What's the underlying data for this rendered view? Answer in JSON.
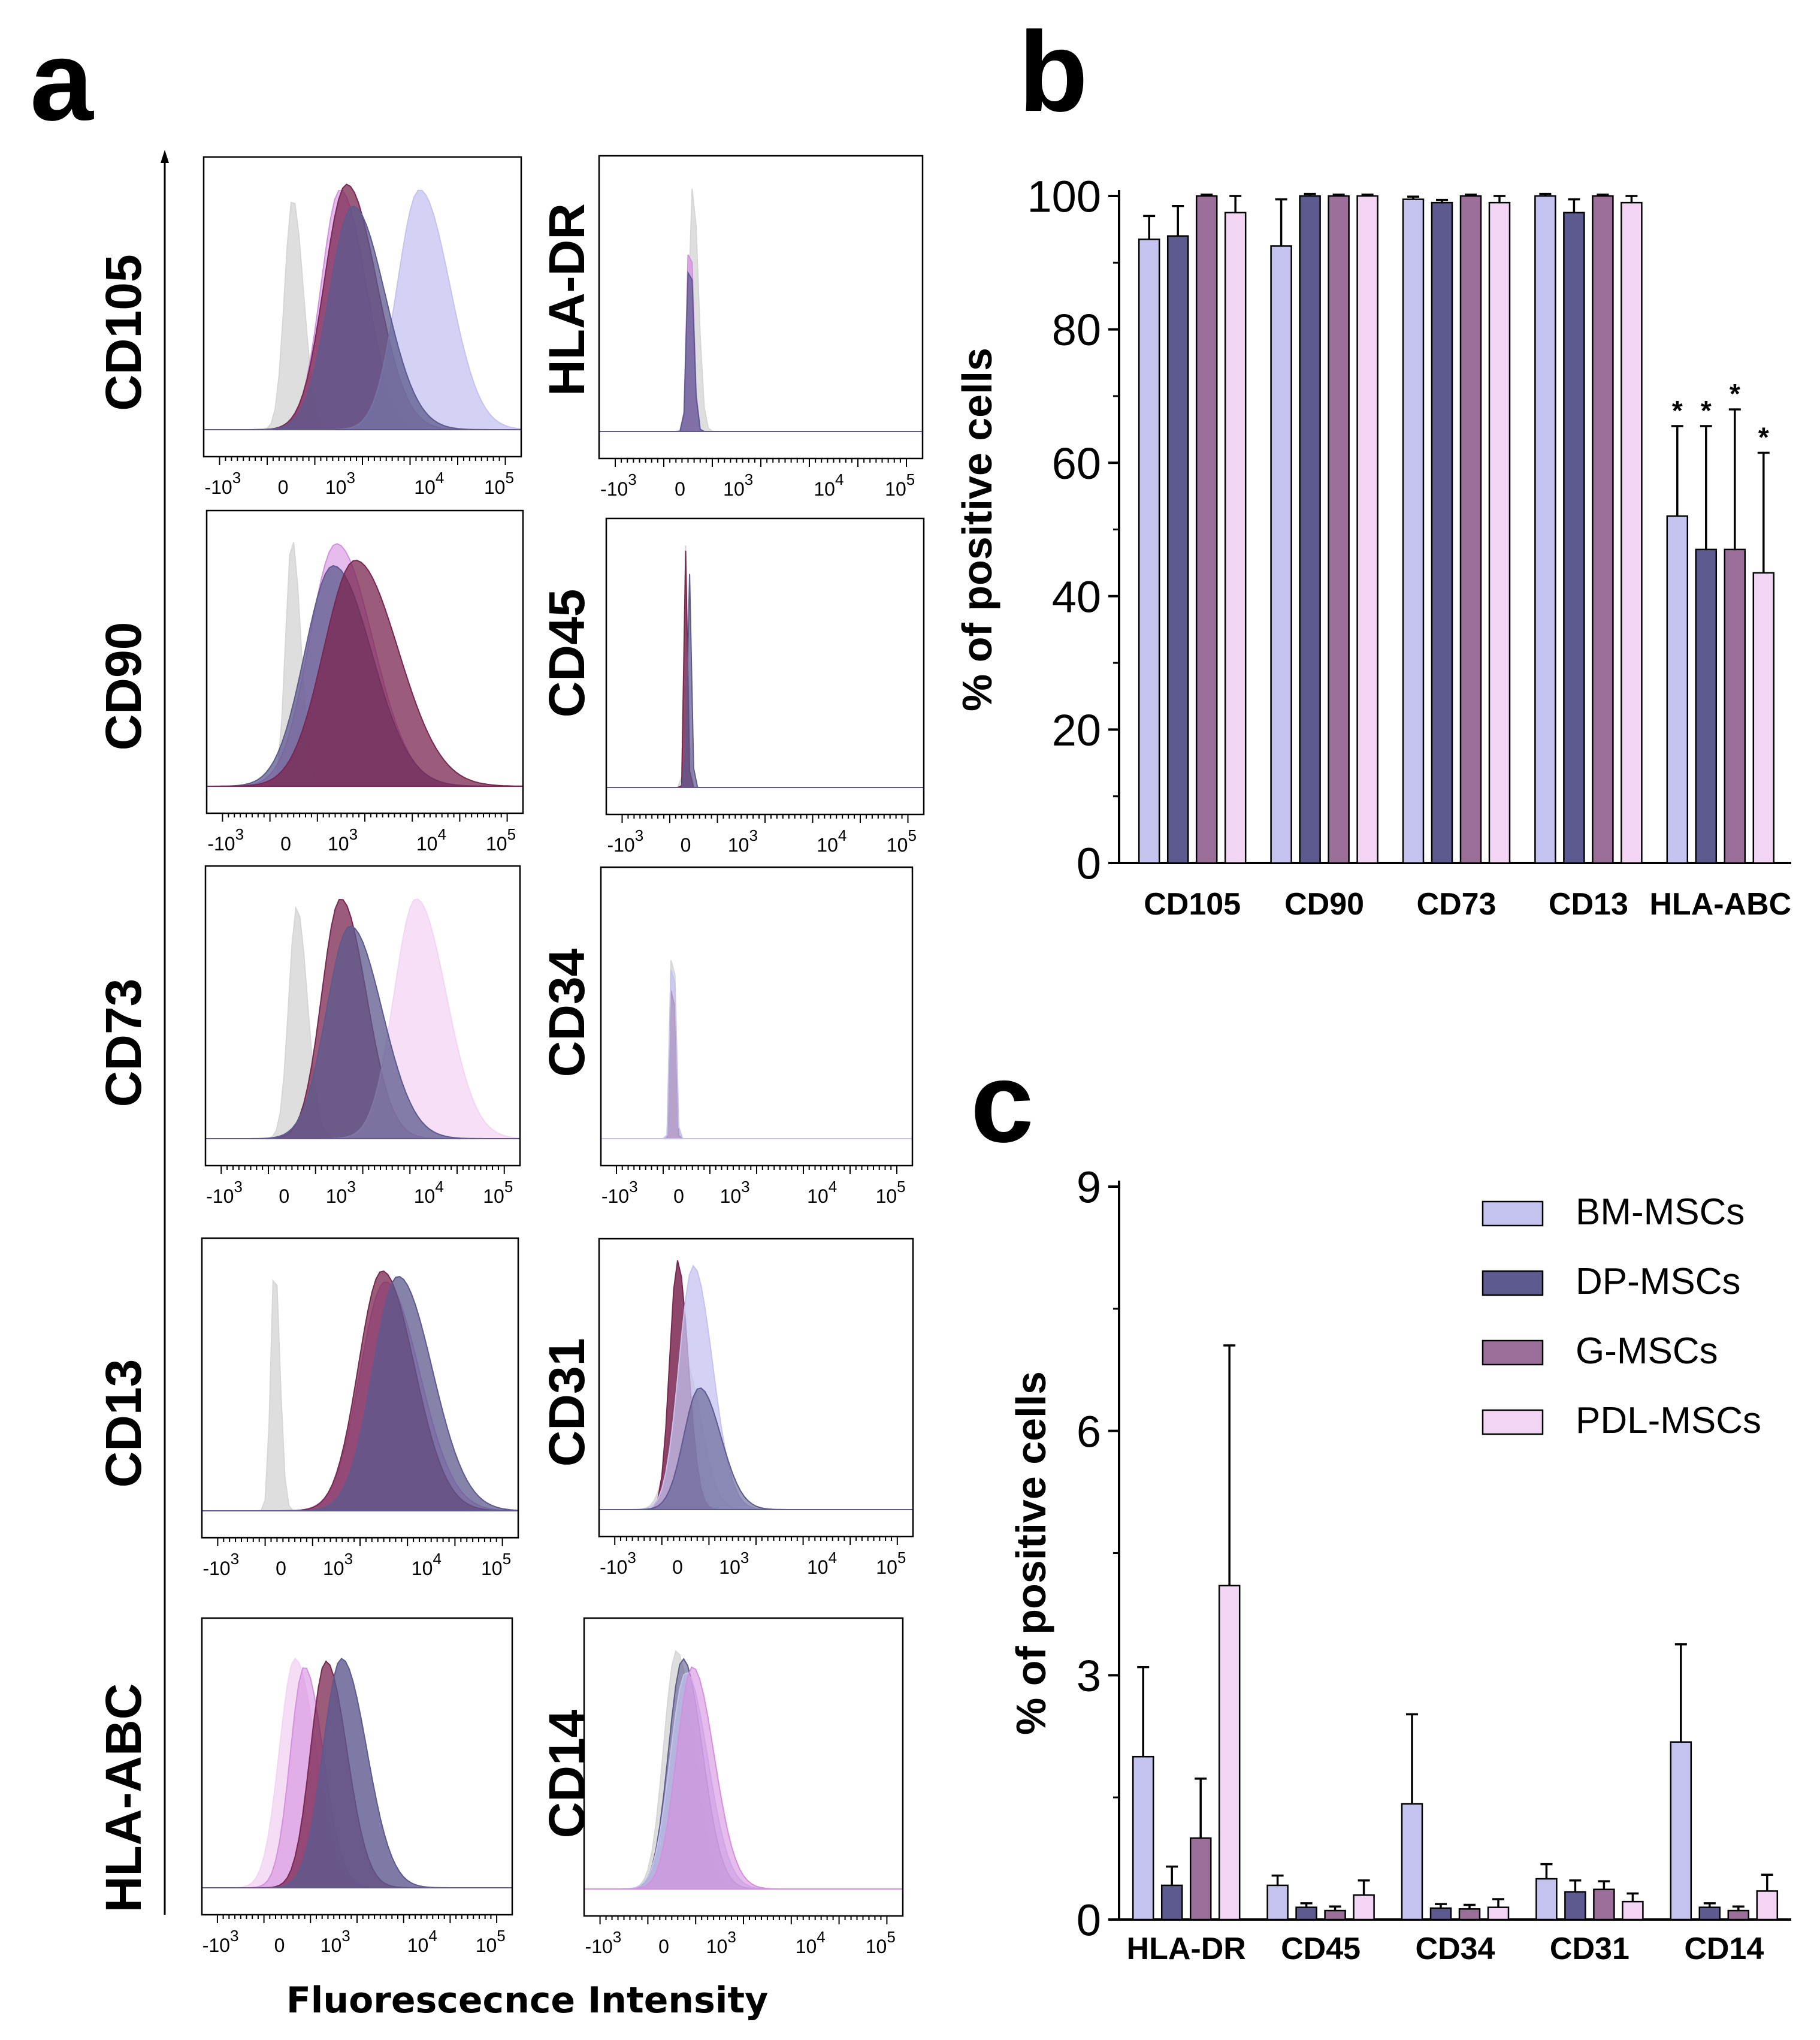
{
  "panel_a": {
    "letter": "a",
    "x_axis_label": "Fluorescecnce Intensity",
    "x_tick_labels": [
      "-10",
      "0",
      "10",
      "10",
      "10"
    ],
    "x_tick_superscripts": [
      "3",
      "",
      "3",
      "4",
      "5"
    ],
    "left_column_markers": [
      "CD105",
      "CD90",
      "CD73",
      "CD13",
      "HLA-ABC"
    ],
    "right_column_markers": [
      "HLA-DR",
      "CD45",
      "CD34",
      "CD31",
      "CD14"
    ]
  },
  "colors": {
    "BM-MSCs": "#c4c3f0",
    "DP-MSCs": "#5c5a8e",
    "G-MSCs": "#9c6f9b",
    "PDL-MSCs": "#f4d4f4",
    "isotype": "#d6d6d6",
    "magenta": "#d58fe0",
    "wine": "#7a2650"
  },
  "chart_data": [
    {
      "panel": "b",
      "type": "bar",
      "title": "",
      "xlabel": "",
      "ylabel": "% of positive cells",
      "ylim": [
        0,
        100
      ],
      "yticks": [
        "0",
        "20",
        "40",
        "60",
        "80",
        "100"
      ],
      "grid": false,
      "categories": [
        "CD105",
        "CD90",
        "CD73",
        "CD13",
        "HLA-ABC"
      ],
      "series": [
        {
          "name": "BM-MSCs",
          "values": [
            93.5,
            92.5,
            99.5,
            100,
            52.0
          ],
          "errors": [
            3.5,
            7.0,
            0.4,
            0.3,
            13.5
          ]
        },
        {
          "name": "DP-MSCs",
          "values": [
            94.0,
            100,
            99.0,
            97.5,
            47.0
          ],
          "errors": [
            4.5,
            0.3,
            0.4,
            2.0,
            18.5
          ]
        },
        {
          "name": "G-MSCs",
          "values": [
            100,
            100,
            100,
            100,
            47.0
          ],
          "errors": [
            0.2,
            0.2,
            0.2,
            0.2,
            21.0
          ]
        },
        {
          "name": "PDL-MSCs",
          "values": [
            97.5,
            100,
            99.0,
            99.0,
            43.5
          ],
          "errors": [
            2.5,
            0.2,
            1.0,
            1.0,
            18.0
          ]
        }
      ],
      "annotations": [
        "*",
        "*",
        "*",
        "*"
      ]
    },
    {
      "panel": "c",
      "type": "bar",
      "title": "",
      "xlabel": "",
      "ylabel": "% of positive cells",
      "ylim": [
        0,
        9
      ],
      "yticks": [
        "0",
        "3",
        "6",
        "9"
      ],
      "grid": false,
      "legend": "top-right",
      "legend_entries": [
        "BM-MSCs",
        "DP-MSCs",
        "G-MSCs",
        "PDL-MSCs"
      ],
      "categories": [
        "HLA-DR",
        "CD45",
        "CD34",
        "CD31",
        "CD14"
      ],
      "series": [
        {
          "name": "BM-MSCs",
          "values": [
            2.0,
            0.42,
            1.42,
            0.5,
            2.18
          ],
          "errors": [
            1.1,
            0.12,
            1.1,
            0.18,
            1.2
          ]
        },
        {
          "name": "DP-MSCs",
          "values": [
            0.42,
            0.15,
            0.14,
            0.34,
            0.15
          ],
          "errors": [
            0.23,
            0.05,
            0.05,
            0.14,
            0.05
          ]
        },
        {
          "name": "G-MSCs",
          "values": [
            1.0,
            0.11,
            0.13,
            0.37,
            0.11
          ],
          "errors": [
            0.73,
            0.05,
            0.05,
            0.1,
            0.05
          ]
        },
        {
          "name": "PDL-MSCs",
          "values": [
            4.1,
            0.3,
            0.15,
            0.22,
            0.35
          ],
          "errors": [
            2.95,
            0.18,
            0.1,
            0.1,
            0.2
          ]
        }
      ]
    }
  ]
}
